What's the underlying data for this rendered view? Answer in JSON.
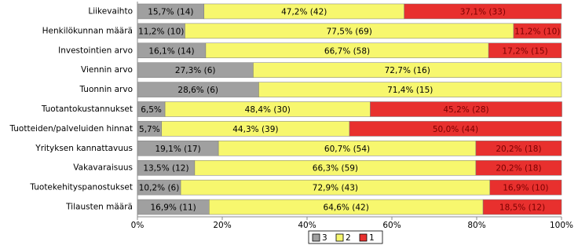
{
  "chart_data": {
    "type": "stacked-bar-horizontal",
    "categories": [
      "Liikevaihto",
      "Henkilökunnan määrä",
      "Investointien arvo",
      "Viennin arvo",
      "Tuonnin arvo",
      "Tuotantokustannukset",
      "Tuotteiden/palveluiden hinnat",
      "Yrityksen kannattavuus",
      "Vakavaraisuus",
      "Tuotekehityspanostukset",
      "Tilausten määrä"
    ],
    "series": [
      {
        "name": "3",
        "color": "#a0a0a0",
        "label_color": "#000000",
        "values": [
          15.7,
          11.2,
          16.1,
          27.3,
          28.6,
          6.5,
          5.7,
          19.1,
          13.5,
          10.2,
          16.9
        ],
        "value_labels": [
          "15,7% (14)",
          "11,2% (10)",
          "16,1% (14)",
          "27,3% (6)",
          "28,6% (6)",
          "6,5%",
          "5,7%",
          "19,1% (17)",
          "13,5% (12)",
          "10,2% (6)",
          "16,9% (11)"
        ]
      },
      {
        "name": "2",
        "color": "#f7f76e",
        "label_color": "#000000",
        "values": [
          47.2,
          77.5,
          66.7,
          72.7,
          71.4,
          48.4,
          44.3,
          60.7,
          66.3,
          72.9,
          64.6
        ],
        "value_labels": [
          "47,2% (42)",
          "77,5% (69)",
          "66,7% (58)",
          "72,7% (16)",
          "71,4% (15)",
          "48,4% (30)",
          "44,3% (39)",
          "60,7% (54)",
          "66,3% (59)",
          "72,9% (43)",
          "64,6% (42)"
        ]
      },
      {
        "name": "1",
        "color": "#e8302e",
        "label_color": "#7a0000",
        "values": [
          37.1,
          11.2,
          17.2,
          null,
          null,
          45.2,
          50.0,
          20.2,
          20.2,
          16.9,
          18.5
        ],
        "value_labels": [
          "37,1% (33)",
          "11,2% (10)",
          "17,2% (15)",
          null,
          null,
          "45,2% (28)",
          "50,0% (44)",
          "20,2% (18)",
          "20,2% (18)",
          "16,9% (10)",
          "18,5% (12)"
        ]
      }
    ],
    "xlim": [
      0,
      100
    ],
    "xticks": [
      {
        "value": 0,
        "label": "0%"
      },
      {
        "value": 20,
        "label": "20%"
      },
      {
        "value": 40,
        "label": "40%"
      },
      {
        "value": 60,
        "label": "60%"
      },
      {
        "value": 80,
        "label": "80%"
      },
      {
        "value": 100,
        "label": "100%"
      }
    ],
    "legend": "bottom"
  }
}
